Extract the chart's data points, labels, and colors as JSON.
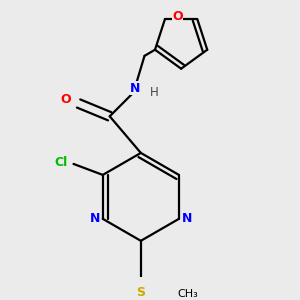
{
  "background_color": "#ebebeb",
  "bond_color": "#000000",
  "atom_colors": {
    "N": "#0000ff",
    "O": "#ff0000",
    "S": "#ccaa00",
    "Cl": "#00bb00",
    "C": "#000000",
    "H": "#444444"
  },
  "figsize": [
    3.0,
    3.0
  ],
  "dpi": 100
}
